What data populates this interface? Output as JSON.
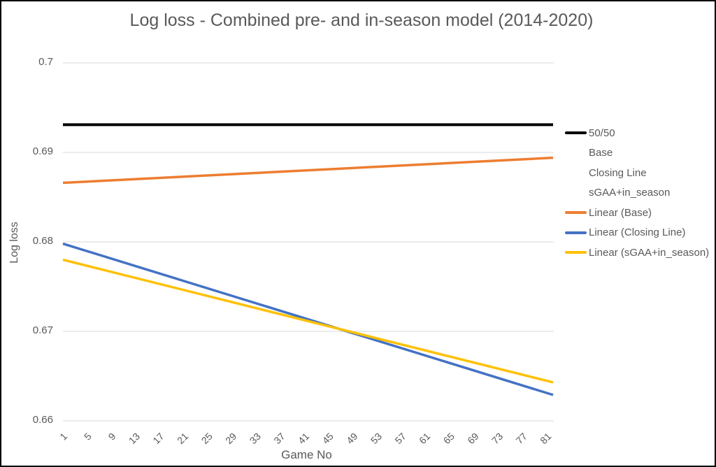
{
  "chart_data": {
    "type": "line",
    "title": "Log loss - Combined pre- and in-season model (2014-2020)",
    "xlabel": "Game No",
    "ylabel": "Log loss",
    "ylim": [
      0.66,
      0.7
    ],
    "x_range": [
      1,
      82
    ],
    "grid": "horizontal",
    "legend_position": "right",
    "y_ticks": [
      {
        "value": 0.7,
        "label": "0.7"
      },
      {
        "value": 0.69,
        "label": "0.69"
      },
      {
        "value": 0.68,
        "label": "0.68"
      },
      {
        "value": 0.67,
        "label": "0.67"
      },
      {
        "value": 0.66,
        "label": "0.66"
      }
    ],
    "x_ticks": [
      1,
      5,
      9,
      13,
      17,
      21,
      25,
      29,
      33,
      37,
      41,
      45,
      49,
      53,
      57,
      61,
      65,
      69,
      73,
      77,
      81
    ],
    "series": [
      {
        "name": "50/50",
        "color": "#000000",
        "stroke_width": 4,
        "points": [
          [
            1,
            0.6931
          ],
          [
            82,
            0.6931
          ]
        ]
      },
      {
        "name": "Linear (Base)",
        "color": "#ED7D31",
        "stroke_width": 3.5,
        "points": [
          [
            1,
            0.6866
          ],
          [
            82,
            0.6894
          ]
        ]
      },
      {
        "name": "Linear (Closing Line)",
        "color": "#4472C4",
        "stroke_width": 3.5,
        "points": [
          [
            1,
            0.6798
          ],
          [
            82,
            0.6629
          ]
        ]
      },
      {
        "name": "Linear (sGAA+in_season)",
        "color": "#FFC000",
        "stroke_width": 3.5,
        "points": [
          [
            1,
            0.678
          ],
          [
            82,
            0.6643
          ]
        ]
      }
    ],
    "legend": [
      {
        "label": "50/50",
        "color": "#000000"
      },
      {
        "label": "Base",
        "color": null
      },
      {
        "label": "Closing Line",
        "color": null
      },
      {
        "label": "sGAA+in_season",
        "color": null
      },
      {
        "label": "Linear (Base)",
        "color": "#ED7D31"
      },
      {
        "label": "Linear (Closing Line)",
        "color": "#4472C4"
      },
      {
        "label": "Linear (sGAA+in_season)",
        "color": "#FFC000"
      }
    ],
    "colors": {
      "text": "#595959",
      "gridline": "#D9D9D9",
      "background": "#FFFFFF",
      "border": "#000000"
    }
  }
}
